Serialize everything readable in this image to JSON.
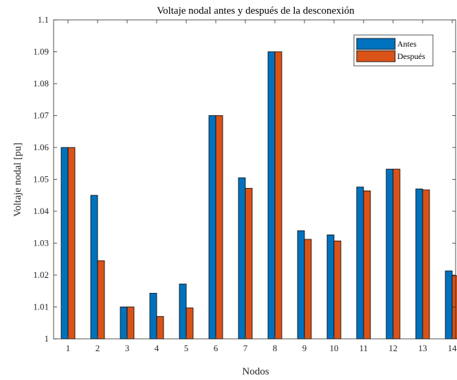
{
  "chart_data": {
    "type": "bar",
    "title": "Voltaje nodal antes y después de la desconexión",
    "xlabel": "Nodos",
    "ylabel": "Voltaje nodal [pu]",
    "categories": [
      "1",
      "2",
      "3",
      "4",
      "5",
      "6",
      "7",
      "8",
      "9",
      "10",
      "11",
      "12",
      "13",
      "14"
    ],
    "ylim": [
      1,
      1.1
    ],
    "yticks": [
      "1",
      "1.01",
      "1.02",
      "1.03",
      "1.04",
      "1.05",
      "1.06",
      "1.07",
      "1.08",
      "1.09",
      "1.1"
    ],
    "legend_position": "top-right",
    "grid": false,
    "series": [
      {
        "name": "Antes",
        "color": "#0072BD",
        "values": [
          1.06,
          1.045,
          1.01,
          1.0143,
          1.0172,
          1.07,
          1.0505,
          1.09,
          1.0339,
          1.0326,
          1.0476,
          1.0532,
          1.047,
          1.0213
        ]
      },
      {
        "name": "Después",
        "color": "#D95319",
        "values": [
          1.06,
          1.0245,
          1.01,
          1.007,
          1.0097,
          1.07,
          1.0472,
          1.09,
          1.0312,
          1.0307,
          1.0464,
          1.0532,
          1.0467,
          1.0198
        ]
      }
    ]
  }
}
